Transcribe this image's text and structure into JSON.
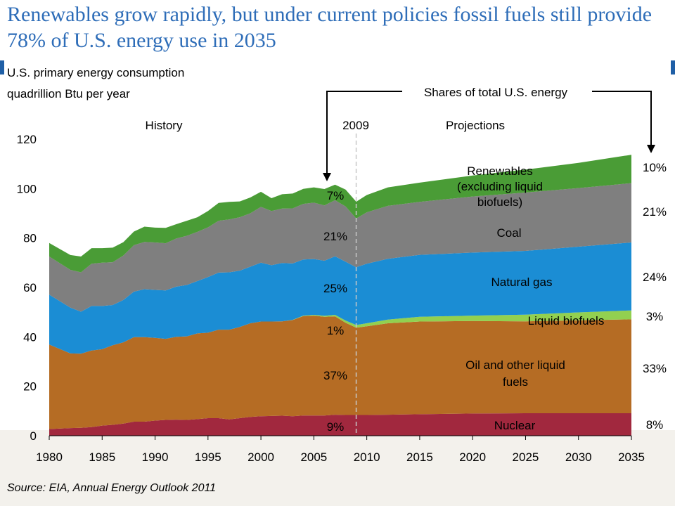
{
  "title": "Renewables grow rapidly, but under current policies fossil fuels still provide 78% of U.S. energy use in 2035",
  "y_label_line1": "U.S. primary energy consumption",
  "y_label_line2": "quadrillion Btu per year",
  "source": "Source:  EIA, Annual Energy Outlook 2011",
  "chart_data": {
    "type": "area",
    "stacked": true,
    "xlim": [
      1980,
      2035
    ],
    "ylim": [
      0,
      120
    ],
    "x_ticks": [
      1980,
      1985,
      1990,
      1995,
      2000,
      2005,
      2010,
      2015,
      2020,
      2025,
      2030,
      2035
    ],
    "y_ticks": [
      0,
      20,
      40,
      60,
      80,
      100,
      120
    ],
    "grid": false,
    "divider_year": 2009,
    "divider_label": "2009",
    "history_label": "History",
    "projections_label": "Projections",
    "shares_header": "Shares of total U.S. energy",
    "x": [
      1980,
      1982,
      1983,
      1984,
      1985,
      1986,
      1987,
      1988,
      1989,
      1990,
      1991,
      1992,
      1993,
      1994,
      1995,
      1996,
      1997,
      1998,
      1999,
      2000,
      2001,
      2002,
      2003,
      2004,
      2005,
      2006,
      2007,
      2008,
      2009,
      2010,
      2012,
      2015,
      2020,
      2025,
      2030,
      2035
    ],
    "series": [
      {
        "name": "Nuclear",
        "color": "#a1283e",
        "values": [
          2.7,
          3.1,
          3.2,
          3.5,
          4.1,
          4.4,
          4.9,
          5.7,
          5.7,
          6.1,
          6.4,
          6.5,
          6.4,
          6.7,
          7.1,
          7.1,
          6.6,
          7.1,
          7.6,
          7.9,
          8.0,
          8.1,
          7.9,
          8.2,
          8.2,
          8.2,
          8.5,
          8.4,
          8.4,
          8.4,
          8.5,
          8.7,
          9.0,
          9.1,
          9.1,
          9.1
        ]
      },
      {
        "name": "Oil and other liquid fuels",
        "color": "#b56c24",
        "values": [
          34.2,
          30.2,
          30.0,
          31.0,
          30.9,
          32.2,
          32.9,
          34.2,
          34.2,
          33.5,
          32.8,
          33.5,
          33.8,
          34.7,
          34.6,
          35.8,
          36.3,
          36.9,
          37.9,
          38.3,
          38.2,
          38.2,
          38.9,
          40.2,
          40.4,
          39.9,
          39.8,
          37.3,
          35.3,
          35.9,
          37.0,
          37.5,
          37.4,
          37.2,
          37.6,
          38.0
        ]
      },
      {
        "name": "Liquid biofuels",
        "color": "#92d050",
        "values": [
          0,
          0,
          0,
          0,
          0,
          0,
          0,
          0,
          0,
          0,
          0,
          0,
          0,
          0,
          0,
          0,
          0,
          0,
          0,
          0,
          0,
          0,
          0.1,
          0.2,
          0.3,
          0.4,
          0.6,
          0.9,
          1.1,
          1.2,
          1.5,
          1.9,
          2.2,
          2.7,
          3.2,
          3.6
        ]
      },
      {
        "name": "Natural gas",
        "color": "#1b8dd4",
        "values": [
          20.2,
          18.5,
          17.0,
          18.0,
          17.5,
          16.3,
          17.1,
          18.4,
          19.4,
          19.4,
          19.6,
          20.3,
          20.8,
          21.2,
          22.5,
          23.1,
          23.2,
          22.8,
          22.9,
          23.8,
          22.8,
          23.6,
          22.8,
          22.7,
          22.6,
          22.3,
          23.7,
          23.8,
          23.4,
          24.1,
          24.6,
          25.1,
          25.5,
          25.8,
          26.6,
          27.5
        ]
      },
      {
        "name": "Coal",
        "color": "#7f7f7f",
        "values": [
          15.4,
          15.3,
          15.9,
          17.1,
          17.5,
          17.3,
          18.0,
          18.8,
          19.1,
          19.2,
          19.1,
          19.5,
          19.9,
          19.9,
          20.1,
          21.0,
          21.4,
          21.6,
          21.6,
          22.6,
          21.9,
          22.0,
          22.3,
          22.5,
          22.8,
          22.4,
          22.7,
          22.4,
          19.7,
          20.8,
          21.4,
          21.4,
          22.7,
          23.6,
          23.7,
          24.0
        ]
      },
      {
        "name": "Renewables (excluding liquid biofuels)",
        "color": "#4a9c36",
        "values": [
          5.5,
          6.0,
          6.4,
          6.3,
          5.9,
          5.9,
          5.4,
          5.5,
          6.2,
          6.0,
          6.2,
          5.8,
          6.1,
          5.9,
          6.6,
          7.2,
          7.1,
          6.4,
          6.4,
          6.1,
          5.2,
          5.8,
          6.0,
          6.1,
          6.2,
          6.6,
          6.3,
          6.8,
          6.8,
          7.0,
          7.5,
          7.8,
          8.5,
          9.3,
          10.2,
          11.5
        ]
      }
    ],
    "annotations": {
      "renewables_label": [
        "Renewables",
        "(excluding liquid",
        "biofuels)"
      ],
      "coal_label": "Coal",
      "natural_gas_label": "Natural gas",
      "liquid_biofuels_label": "Liquid biofuels",
      "oil_label": [
        "Oil and other liquid",
        "fuels"
      ],
      "nuclear_label": "Nuclear"
    },
    "shares_2009": [
      "7%",
      "21%",
      "25%",
      "1%",
      "37%",
      "9%"
    ],
    "shares_2035": [
      "10%",
      "21%",
      "24%",
      "3%",
      "33%",
      "8%"
    ]
  }
}
